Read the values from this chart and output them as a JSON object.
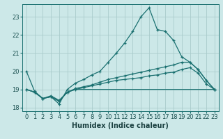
{
  "xlabel": "Humidex (Indice chaleur)",
  "bg_color": "#cce8e8",
  "grid_color": "#aacccc",
  "line_color": "#1a7070",
  "xlim": [
    -0.5,
    23.5
  ],
  "ylim": [
    17.8,
    23.7
  ],
  "yticks": [
    18,
    19,
    20,
    21,
    22,
    23
  ],
  "xticks": [
    0,
    1,
    2,
    3,
    4,
    5,
    6,
    7,
    8,
    9,
    10,
    11,
    12,
    13,
    14,
    15,
    16,
    17,
    18,
    19,
    20,
    21,
    22,
    23
  ],
  "line1_x": [
    0,
    1,
    2,
    3,
    4,
    5,
    6,
    7,
    8,
    9,
    10,
    11,
    12,
    13,
    14,
    15,
    16,
    17,
    18,
    19,
    20,
    21,
    22,
    23
  ],
  "line1_y": [
    20.0,
    18.9,
    18.5,
    18.6,
    18.2,
    19.0,
    19.35,
    19.55,
    19.8,
    20.0,
    20.5,
    21.0,
    21.55,
    22.2,
    23.0,
    23.5,
    22.3,
    22.2,
    21.7,
    20.8,
    20.5,
    20.1,
    19.5,
    19.0
  ],
  "line2_x": [
    0,
    1,
    2,
    3,
    4,
    5,
    6,
    7,
    8,
    9,
    10,
    11,
    12,
    13,
    14,
    15,
    16,
    17,
    18,
    19,
    20,
    21,
    22,
    23
  ],
  "line2_y": [
    19.0,
    18.85,
    18.5,
    18.65,
    18.4,
    18.85,
    19.05,
    19.15,
    19.25,
    19.4,
    19.55,
    19.65,
    19.75,
    19.85,
    19.95,
    20.05,
    20.15,
    20.25,
    20.35,
    20.5,
    20.5,
    20.1,
    19.5,
    19.0
  ],
  "line3_x": [
    0,
    1,
    2,
    3,
    4,
    5,
    6,
    7,
    8,
    9,
    10,
    11,
    12,
    13,
    14,
    15,
    16,
    17,
    18,
    19,
    20,
    21,
    22,
    23
  ],
  "line3_y": [
    19.0,
    18.85,
    18.5,
    18.6,
    18.35,
    18.85,
    19.0,
    19.1,
    19.2,
    19.3,
    19.4,
    19.5,
    19.55,
    19.6,
    19.65,
    19.75,
    19.8,
    19.9,
    19.95,
    20.1,
    20.2,
    19.9,
    19.3,
    19.0
  ],
  "line4_x": [
    0,
    1,
    2,
    3,
    4,
    5,
    6,
    7,
    8,
    9,
    10,
    11,
    12,
    13,
    14,
    15,
    16,
    17,
    18,
    19,
    20,
    21,
    22,
    23
  ],
  "line4_y": [
    19.0,
    18.85,
    18.5,
    18.6,
    18.35,
    18.85,
    19.0,
    19.0,
    19.0,
    19.0,
    19.0,
    19.0,
    19.0,
    19.0,
    19.0,
    19.0,
    19.0,
    19.0,
    19.0,
    19.0,
    19.0,
    19.0,
    19.0,
    19.0
  ],
  "xlabel_fontsize": 7,
  "tick_fontsize": 6,
  "lw": 0.9,
  "marker_size": 2.5
}
